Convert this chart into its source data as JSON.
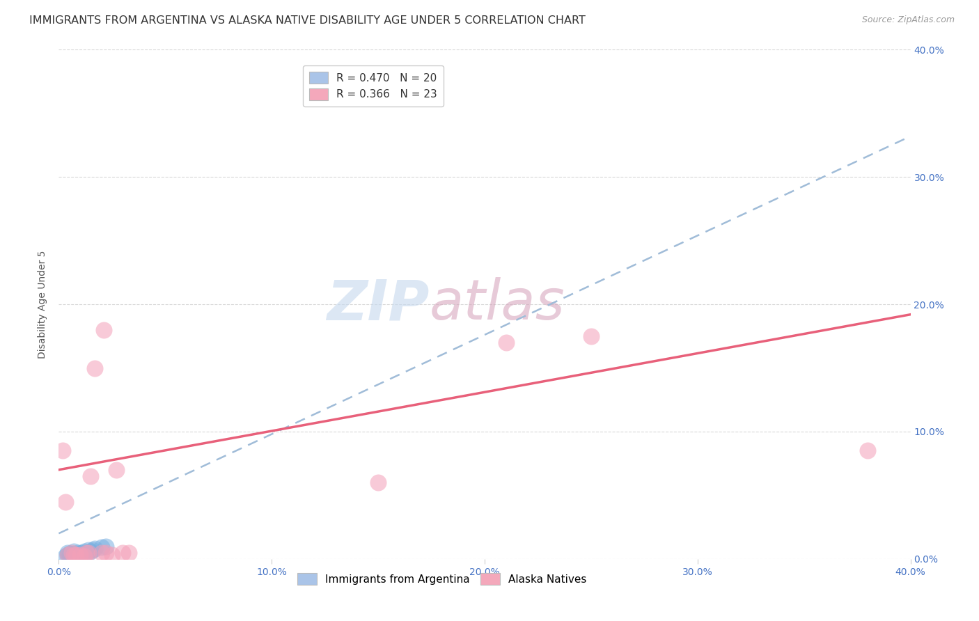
{
  "title": "IMMIGRANTS FROM ARGENTINA VS ALASKA NATIVE DISABILITY AGE UNDER 5 CORRELATION CHART",
  "source": "Source: ZipAtlas.com",
  "ylabel": "Disability Age Under 5",
  "x_tick_vals": [
    0.0,
    0.1,
    0.2,
    0.3,
    0.4
  ],
  "x_tick_labels": [
    "0.0%",
    "10.0%",
    "20.0%",
    "30.0%",
    "40.0%"
  ],
  "y_tick_vals": [
    0.0,
    0.1,
    0.2,
    0.3,
    0.4
  ],
  "y_tick_labels_right": [
    "0.0%",
    "10.0%",
    "20.0%",
    "30.0%",
    "40.0%"
  ],
  "xlim": [
    0.0,
    0.4
  ],
  "ylim": [
    0.0,
    0.4
  ],
  "legend_label1": "R = 0.470   N = 20",
  "legend_label2": "R = 0.366   N = 23",
  "legend_color1": "#aac4e8",
  "legend_color2": "#f4a8bb",
  "scatter_blue": [
    [
      0.003,
      0.002
    ],
    [
      0.004,
      0.003
    ],
    [
      0.004,
      0.005
    ],
    [
      0.005,
      0.002
    ],
    [
      0.005,
      0.004
    ],
    [
      0.006,
      0.003
    ],
    [
      0.007,
      0.004
    ],
    [
      0.007,
      0.006
    ],
    [
      0.008,
      0.003
    ],
    [
      0.009,
      0.005
    ],
    [
      0.01,
      0.004
    ],
    [
      0.011,
      0.005
    ],
    [
      0.012,
      0.006
    ],
    [
      0.013,
      0.005
    ],
    [
      0.014,
      0.007
    ],
    [
      0.015,
      0.006
    ],
    [
      0.016,
      0.007
    ],
    [
      0.017,
      0.008
    ],
    [
      0.02,
      0.009
    ],
    [
      0.022,
      0.01
    ]
  ],
  "scatter_pink": [
    [
      0.002,
      0.085
    ],
    [
      0.003,
      0.045
    ],
    [
      0.004,
      0.003
    ],
    [
      0.006,
      0.005
    ],
    [
      0.007,
      0.003
    ],
    [
      0.008,
      0.003
    ],
    [
      0.01,
      0.003
    ],
    [
      0.012,
      0.002
    ],
    [
      0.013,
      0.005
    ],
    [
      0.014,
      0.005
    ],
    [
      0.015,
      0.065
    ],
    [
      0.017,
      0.15
    ],
    [
      0.02,
      0.005
    ],
    [
      0.021,
      0.18
    ],
    [
      0.022,
      0.005
    ],
    [
      0.025,
      0.003
    ],
    [
      0.027,
      0.07
    ],
    [
      0.03,
      0.005
    ],
    [
      0.033,
      0.005
    ],
    [
      0.15,
      0.06
    ],
    [
      0.21,
      0.17
    ],
    [
      0.25,
      0.175
    ],
    [
      0.38,
      0.085
    ]
  ],
  "trendline_blue_intercept": 0.02,
  "trendline_blue_slope": 0.78,
  "trendline_pink_intercept": 0.07,
  "trendline_pink_slope": 0.305,
  "scatter_blue_color": "#7ab0e0",
  "scatter_pink_color": "#f4a0b8",
  "trendline_blue_color": "#a0bcd8",
  "trendline_pink_color": "#e8607a",
  "watermark_zip": "ZIP",
  "watermark_atlas": "atlas",
  "background_color": "#ffffff",
  "grid_color": "#d8d8d8",
  "title_fontsize": 11.5,
  "axis_label_fontsize": 10,
  "tick_fontsize": 10,
  "legend_fontsize": 11,
  "bottom_legend_labels": [
    "Immigrants from Argentina",
    "Alaska Natives"
  ]
}
